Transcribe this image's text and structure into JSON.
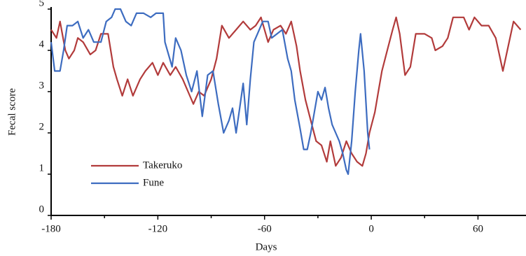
{
  "chart_data": {
    "type": "line",
    "x_label": "Days",
    "y_label": "Fecal score",
    "xlim": [
      -180,
      87
    ],
    "ylim": [
      0,
      5
    ],
    "xticks": [
      -180,
      -120,
      -60,
      0,
      60
    ],
    "xminor_ticks": [
      -150,
      -90,
      -30,
      30
    ],
    "yticks": [
      0,
      1,
      2,
      3,
      4,
      5
    ],
    "legend": "lower left",
    "series": [
      {
        "name": "Takeruko",
        "color": "#b23b3b",
        "x": [
          -180,
          -177,
          -175,
          -172,
          -170,
          -167,
          -165,
          -162,
          -158,
          -155,
          -152,
          -148,
          -145,
          -143,
          -140,
          -137,
          -134,
          -130,
          -127,
          -123,
          -120,
          -117,
          -113,
          -110,
          -106,
          -103,
          -100,
          -97,
          -94,
          -90,
          -87,
          -84,
          -80,
          -76,
          -72,
          -68,
          -65,
          -62,
          -58,
          -55,
          -51,
          -48,
          -45,
          -42,
          -40,
          -37,
          -34,
          -31,
          -28,
          -25,
          -23,
          -20,
          -17,
          -14,
          -11,
          -8,
          -5,
          -3,
          -1,
          2,
          4,
          6,
          9,
          12,
          14,
          16,
          19,
          22,
          25,
          30,
          34,
          36,
          40,
          43,
          46,
          52,
          55,
          58,
          62,
          66,
          70,
          74,
          77,
          80,
          84
        ],
        "values": [
          4.5,
          4.3,
          4.7,
          4.0,
          3.8,
          4.0,
          4.3,
          4.2,
          3.9,
          4.0,
          4.4,
          4.4,
          3.6,
          3.3,
          2.9,
          3.3,
          2.9,
          3.3,
          3.5,
          3.7,
          3.4,
          3.7,
          3.4,
          3.6,
          3.3,
          3.0,
          2.7,
          3.0,
          2.9,
          3.3,
          3.8,
          4.6,
          4.3,
          4.5,
          4.7,
          4.5,
          4.6,
          4.8,
          4.2,
          4.5,
          4.6,
          4.4,
          4.7,
          4.1,
          3.5,
          2.8,
          2.3,
          1.8,
          1.7,
          1.3,
          1.8,
          1.2,
          1.4,
          1.8,
          1.5,
          1.3,
          1.2,
          1.5,
          2.0,
          2.5,
          3.0,
          3.5,
          4.0,
          4.5,
          4.8,
          4.4,
          3.4,
          3.6,
          4.4,
          4.4,
          4.3,
          4.0,
          4.1,
          4.3,
          4.8,
          4.8,
          4.5,
          4.8,
          4.6,
          4.6,
          4.3,
          3.5,
          4.1,
          4.7,
          4.5
        ]
      },
      {
        "name": "Fune",
        "color": "#3d6cc0",
        "x": [
          -180,
          -178,
          -175,
          -173,
          -171,
          -168,
          -165,
          -162,
          -159,
          -156,
          -152,
          -149,
          -146,
          -144,
          -141,
          -138,
          -135,
          -132,
          -128,
          -124,
          -121,
          -117,
          -116,
          -112,
          -110,
          -107,
          -104,
          -101,
          -98,
          -95,
          -92,
          -89,
          -86,
          -83,
          -80,
          -78,
          -76,
          -74,
          -72,
          -70,
          -68,
          -66,
          -64,
          -61,
          -58,
          -56,
          -53,
          -50,
          -47,
          -45,
          -43,
          -40,
          -38,
          -36,
          -34,
          -32,
          -30,
          -28,
          -26,
          -24,
          -22,
          -20,
          -18,
          -16,
          -14,
          -13,
          -11,
          -9,
          -7,
          -6,
          -4,
          -2,
          -1
        ],
        "values": [
          4.2,
          3.5,
          3.5,
          4.0,
          4.6,
          4.6,
          4.7,
          4.3,
          4.5,
          4.2,
          4.2,
          4.7,
          4.8,
          5.0,
          5.0,
          4.7,
          4.6,
          4.9,
          4.9,
          4.8,
          4.9,
          4.9,
          4.2,
          3.6,
          4.3,
          4.0,
          3.4,
          3.0,
          3.5,
          2.4,
          3.4,
          3.5,
          2.7,
          2.0,
          2.3,
          2.6,
          2.0,
          2.6,
          3.2,
          2.2,
          3.3,
          4.2,
          4.4,
          4.7,
          4.7,
          4.3,
          4.4,
          4.5,
          3.8,
          3.5,
          2.8,
          2.1,
          1.6,
          1.6,
          2.0,
          2.5,
          3.0,
          2.8,
          3.1,
          2.6,
          2.2,
          2.0,
          1.8,
          1.5,
          1.1,
          1.0,
          1.8,
          3.0,
          4.0,
          4.4,
          3.5,
          2.0,
          1.6
        ]
      }
    ]
  }
}
